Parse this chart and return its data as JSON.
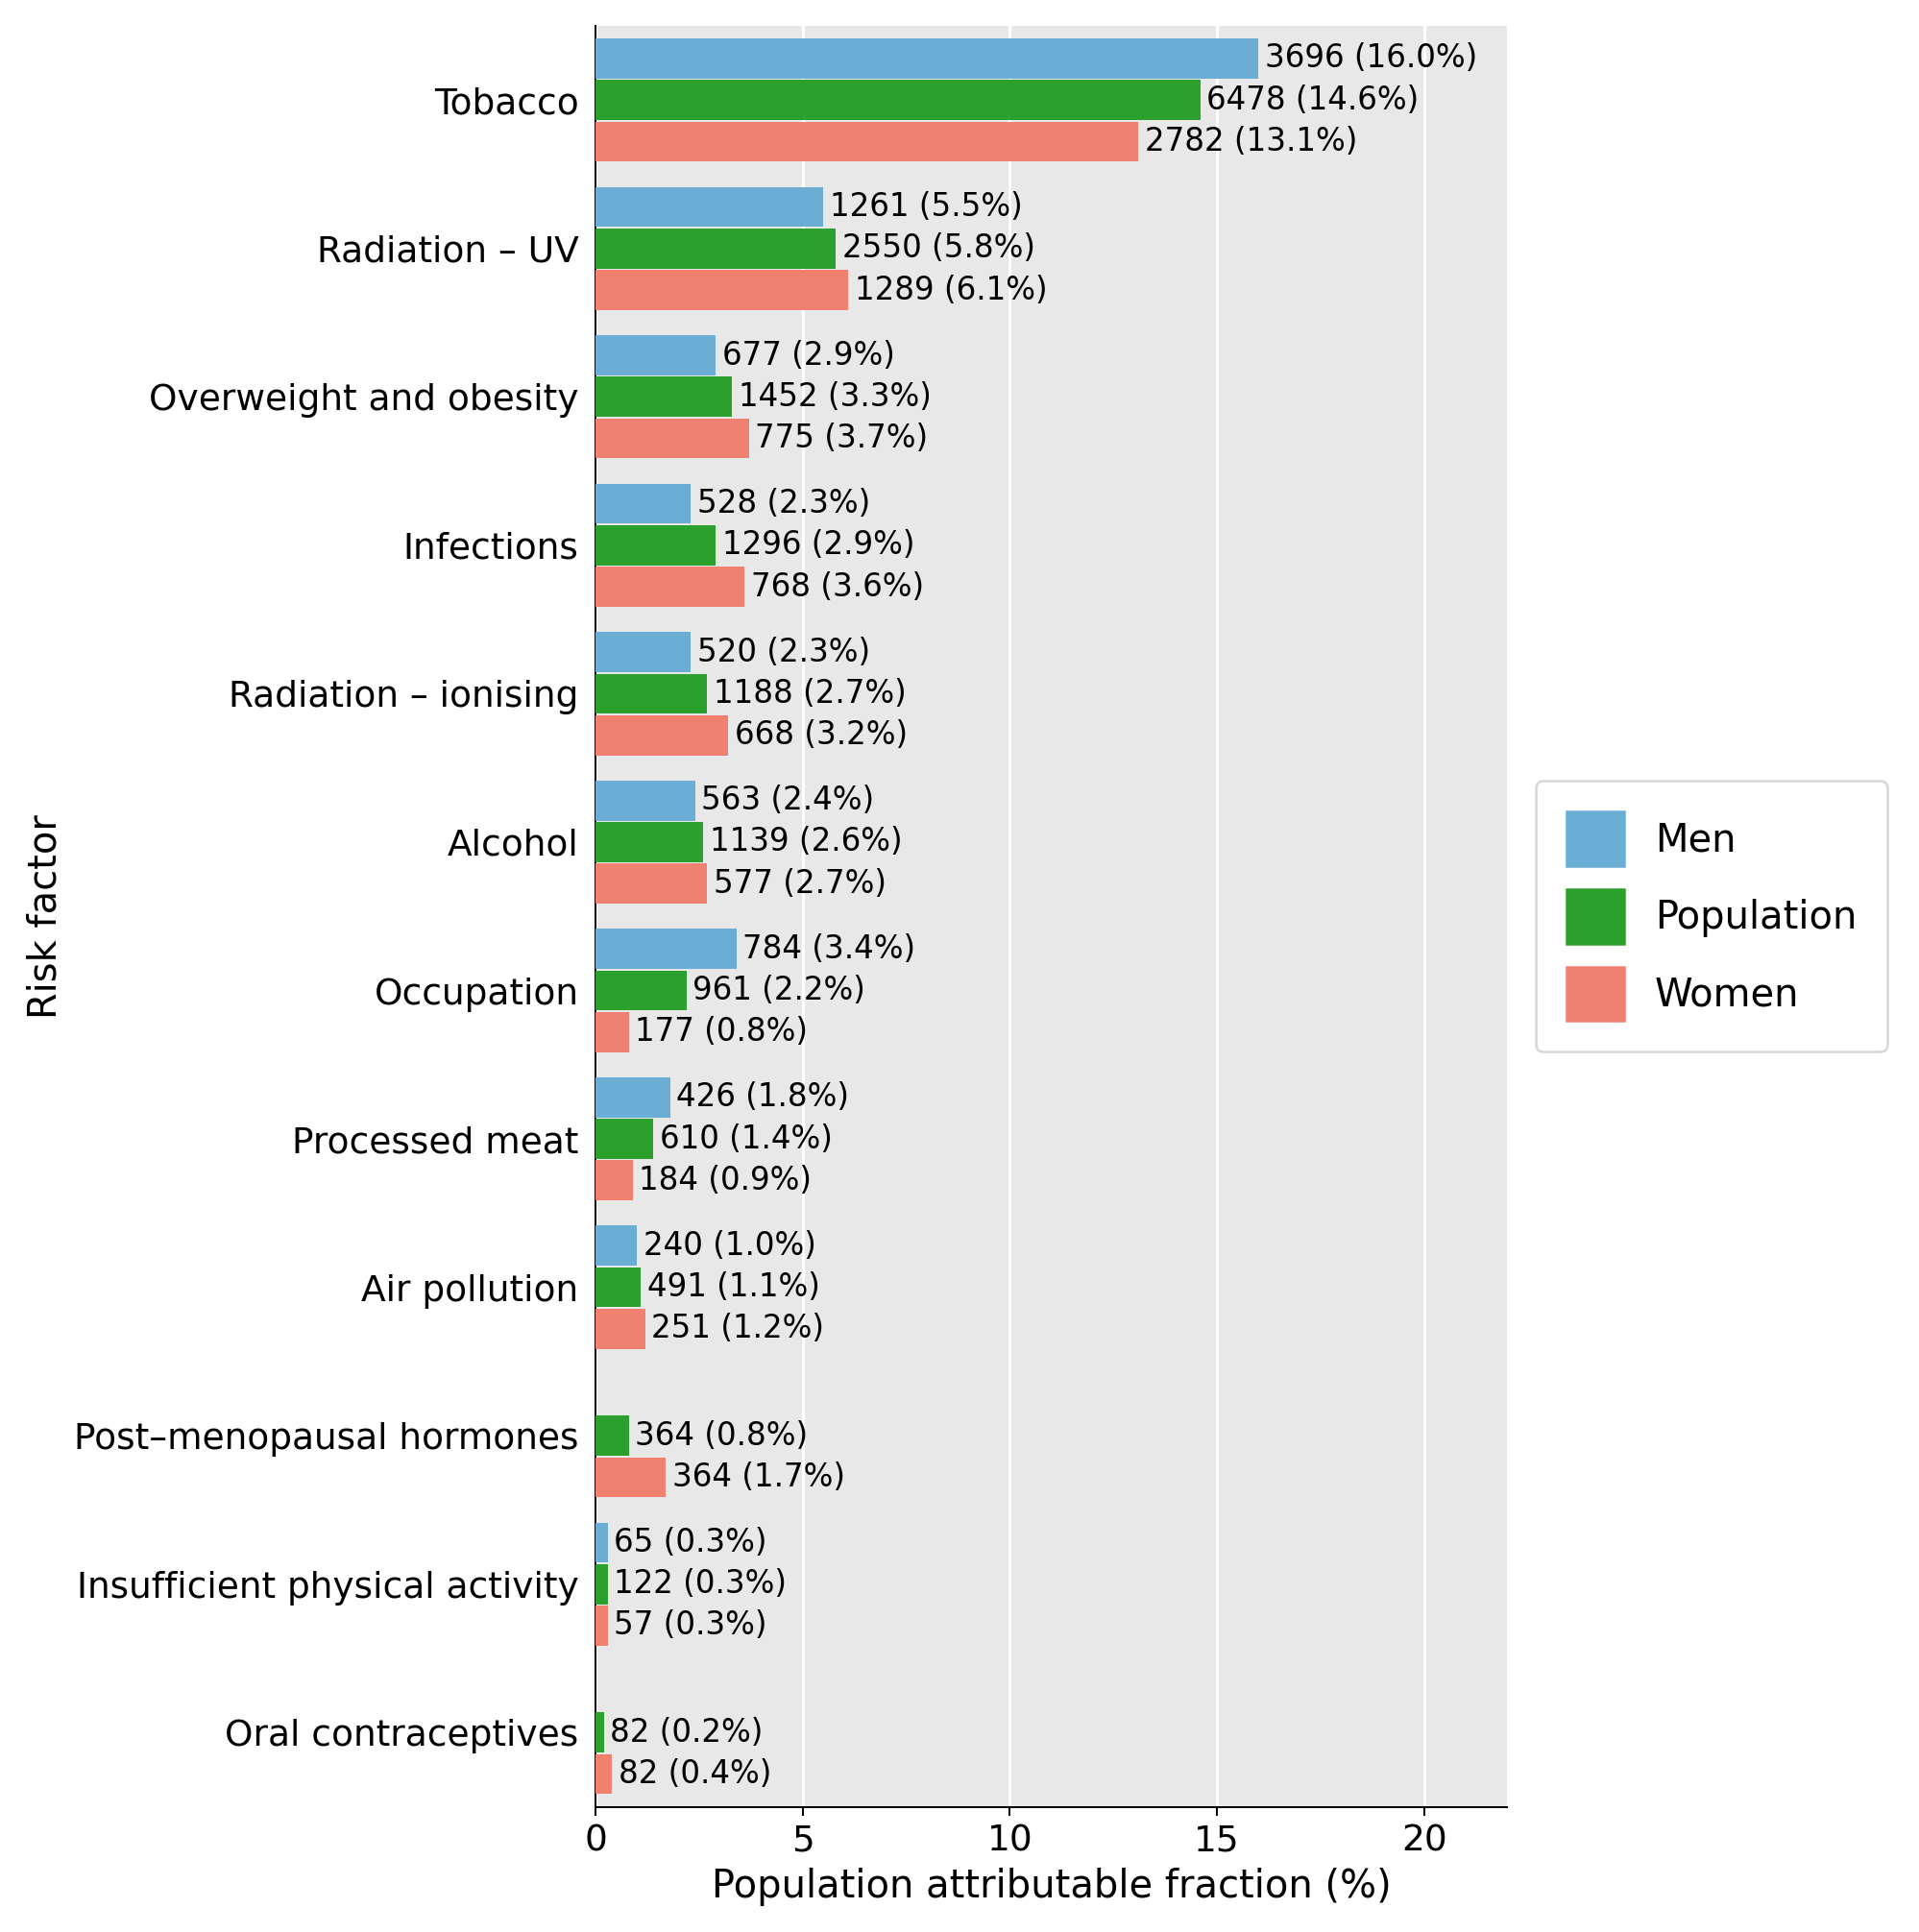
{
  "categories": [
    "Tobacco",
    "Radiation – UV",
    "Overweight and obesity",
    "Infections",
    "Radiation – ionising",
    "Alcohol",
    "Occupation",
    "Processed meat",
    "Air pollution",
    "Post–menopausal hormones",
    "Insufficient physical activity",
    "Oral contraceptives"
  ],
  "men_values": [
    16.0,
    5.5,
    2.9,
    2.3,
    2.3,
    2.4,
    3.4,
    1.8,
    1.0,
    0.0,
    0.3,
    0.0
  ],
  "pop_values": [
    14.6,
    5.8,
    3.3,
    2.9,
    2.7,
    2.6,
    2.2,
    1.4,
    1.1,
    0.8,
    0.3,
    0.2
  ],
  "women_values": [
    13.1,
    6.1,
    3.7,
    3.6,
    3.2,
    2.7,
    0.8,
    0.9,
    1.2,
    1.7,
    0.3,
    0.4
  ],
  "men_labels": [
    "3696 (16.0%)",
    "1261 (5.5%)",
    "677 (2.9%)",
    "528 (2.3%)",
    "520 (2.3%)",
    "563 (2.4%)",
    "784 (3.4%)",
    "426 (1.8%)",
    "240 (1.0%)",
    "",
    "65 (0.3%)",
    ""
  ],
  "pop_labels": [
    "6478 (14.6%)",
    "2550 (5.8%)",
    "1452 (3.3%)",
    "1296 (2.9%)",
    "1188 (2.7%)",
    "1139 (2.6%)",
    "961 (2.2%)",
    "610 (1.4%)",
    "491 (1.1%)",
    "364 (0.8%)",
    "122 (0.3%)",
    "82 (0.2%)"
  ],
  "women_labels": [
    "2782 (13.1%)",
    "1289 (6.1%)",
    "775 (3.7%)",
    "768 (3.6%)",
    "668 (3.2%)",
    "577 (2.7%)",
    "177 (0.8%)",
    "184 (0.9%)",
    "251 (1.2%)",
    "364 (1.7%)",
    "57 (0.3%)",
    "82 (0.4%)"
  ],
  "men_color": "#6aaed6",
  "pop_color": "#2ca02c",
  "women_color": "#f08070",
  "bg_color": "#e8e8e8",
  "xlabel": "Population attributable fraction (%)",
  "ylabel": "Risk factor",
  "xlim": [
    0,
    22
  ],
  "xticks": [
    0,
    5,
    10,
    15,
    20
  ],
  "bar_height": 0.27,
  "label_fontsize": 16,
  "tick_fontsize": 15,
  "annot_fontsize": 13,
  "legend_fontsize": 16
}
